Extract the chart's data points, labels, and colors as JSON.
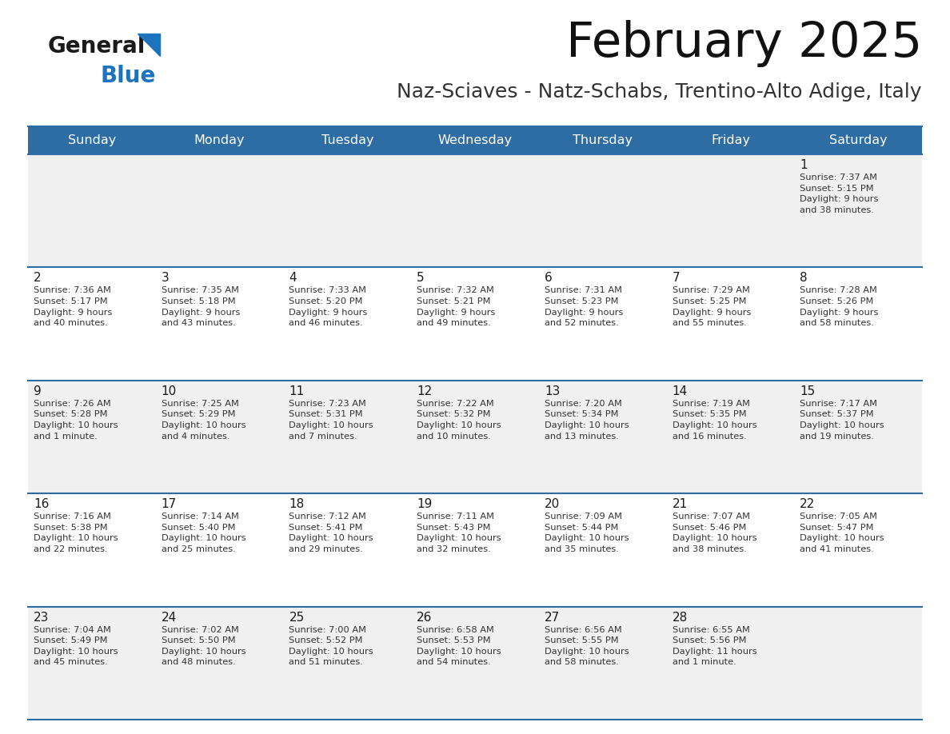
{
  "title": "February 2025",
  "subtitle": "Naz-Sciaves - Natz-Schabs, Trentino-Alto Adige, Italy",
  "header_color": "#2E6DA4",
  "header_text_color": "#FFFFFF",
  "row0_bg": "#F0F0F0",
  "row1_bg": "#FFFFFF",
  "border_color": "#2E6DA4",
  "text_color": "#333333",
  "days_of_week": [
    "Sunday",
    "Monday",
    "Tuesday",
    "Wednesday",
    "Thursday",
    "Friday",
    "Saturday"
  ],
  "calendar_data": [
    [
      null,
      null,
      null,
      null,
      null,
      null,
      {
        "day": "1",
        "sunrise": "7:37 AM",
        "sunset": "5:15 PM",
        "daylight": "9 hours\nand 38 minutes."
      }
    ],
    [
      {
        "day": "2",
        "sunrise": "7:36 AM",
        "sunset": "5:17 PM",
        "daylight": "9 hours\nand 40 minutes."
      },
      {
        "day": "3",
        "sunrise": "7:35 AM",
        "sunset": "5:18 PM",
        "daylight": "9 hours\nand 43 minutes."
      },
      {
        "day": "4",
        "sunrise": "7:33 AM",
        "sunset": "5:20 PM",
        "daylight": "9 hours\nand 46 minutes."
      },
      {
        "day": "5",
        "sunrise": "7:32 AM",
        "sunset": "5:21 PM",
        "daylight": "9 hours\nand 49 minutes."
      },
      {
        "day": "6",
        "sunrise": "7:31 AM",
        "sunset": "5:23 PM",
        "daylight": "9 hours\nand 52 minutes."
      },
      {
        "day": "7",
        "sunrise": "7:29 AM",
        "sunset": "5:25 PM",
        "daylight": "9 hours\nand 55 minutes."
      },
      {
        "day": "8",
        "sunrise": "7:28 AM",
        "sunset": "5:26 PM",
        "daylight": "9 hours\nand 58 minutes."
      }
    ],
    [
      {
        "day": "9",
        "sunrise": "7:26 AM",
        "sunset": "5:28 PM",
        "daylight": "10 hours\nand 1 minute."
      },
      {
        "day": "10",
        "sunrise": "7:25 AM",
        "sunset": "5:29 PM",
        "daylight": "10 hours\nand 4 minutes."
      },
      {
        "day": "11",
        "sunrise": "7:23 AM",
        "sunset": "5:31 PM",
        "daylight": "10 hours\nand 7 minutes."
      },
      {
        "day": "12",
        "sunrise": "7:22 AM",
        "sunset": "5:32 PM",
        "daylight": "10 hours\nand 10 minutes."
      },
      {
        "day": "13",
        "sunrise": "7:20 AM",
        "sunset": "5:34 PM",
        "daylight": "10 hours\nand 13 minutes."
      },
      {
        "day": "14",
        "sunrise": "7:19 AM",
        "sunset": "5:35 PM",
        "daylight": "10 hours\nand 16 minutes."
      },
      {
        "day": "15",
        "sunrise": "7:17 AM",
        "sunset": "5:37 PM",
        "daylight": "10 hours\nand 19 minutes."
      }
    ],
    [
      {
        "day": "16",
        "sunrise": "7:16 AM",
        "sunset": "5:38 PM",
        "daylight": "10 hours\nand 22 minutes."
      },
      {
        "day": "17",
        "sunrise": "7:14 AM",
        "sunset": "5:40 PM",
        "daylight": "10 hours\nand 25 minutes."
      },
      {
        "day": "18",
        "sunrise": "7:12 AM",
        "sunset": "5:41 PM",
        "daylight": "10 hours\nand 29 minutes."
      },
      {
        "day": "19",
        "sunrise": "7:11 AM",
        "sunset": "5:43 PM",
        "daylight": "10 hours\nand 32 minutes."
      },
      {
        "day": "20",
        "sunrise": "7:09 AM",
        "sunset": "5:44 PM",
        "daylight": "10 hours\nand 35 minutes."
      },
      {
        "day": "21",
        "sunrise": "7:07 AM",
        "sunset": "5:46 PM",
        "daylight": "10 hours\nand 38 minutes."
      },
      {
        "day": "22",
        "sunrise": "7:05 AM",
        "sunset": "5:47 PM",
        "daylight": "10 hours\nand 41 minutes."
      }
    ],
    [
      {
        "day": "23",
        "sunrise": "7:04 AM",
        "sunset": "5:49 PM",
        "daylight": "10 hours\nand 45 minutes."
      },
      {
        "day": "24",
        "sunrise": "7:02 AM",
        "sunset": "5:50 PM",
        "daylight": "10 hours\nand 48 minutes."
      },
      {
        "day": "25",
        "sunrise": "7:00 AM",
        "sunset": "5:52 PM",
        "daylight": "10 hours\nand 51 minutes."
      },
      {
        "day": "26",
        "sunrise": "6:58 AM",
        "sunset": "5:53 PM",
        "daylight": "10 hours\nand 54 minutes."
      },
      {
        "day": "27",
        "sunrise": "6:56 AM",
        "sunset": "5:55 PM",
        "daylight": "10 hours\nand 58 minutes."
      },
      {
        "day": "28",
        "sunrise": "6:55 AM",
        "sunset": "5:56 PM",
        "daylight": "11 hours\nand 1 minute."
      },
      null
    ]
  ],
  "logo_color_general": "#1a1a1a",
  "logo_color_blue": "#1E73BE",
  "fig_width": 11.88,
  "fig_height": 9.18,
  "dpi": 100
}
